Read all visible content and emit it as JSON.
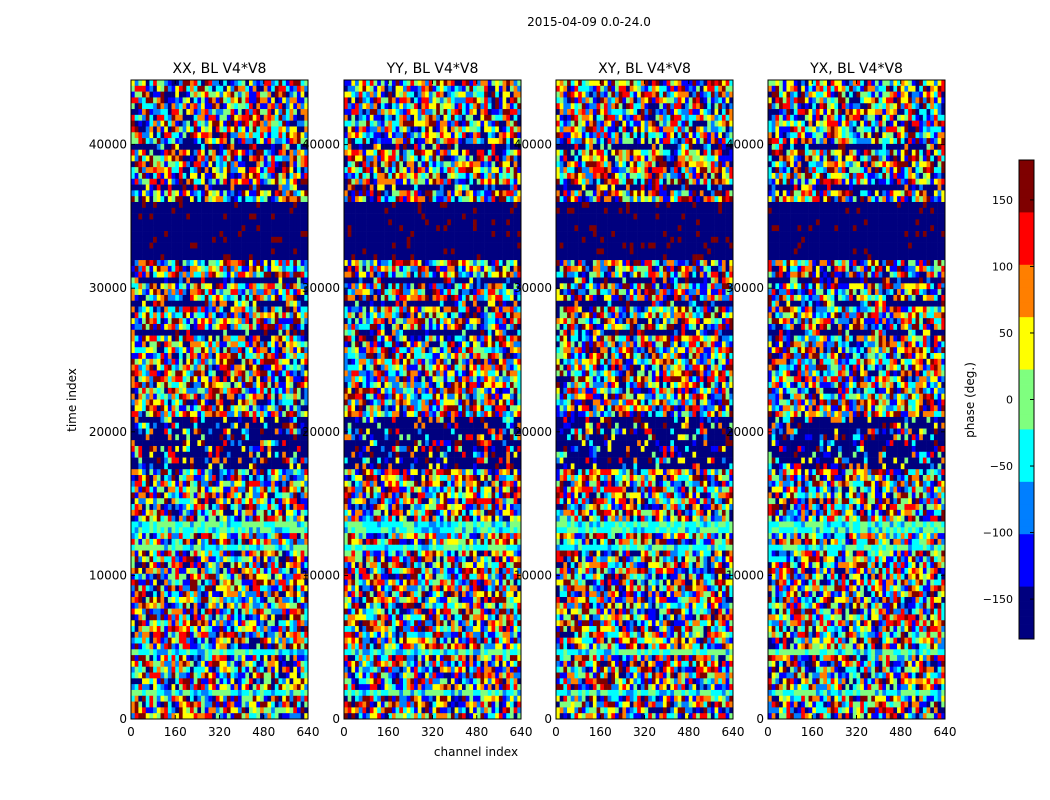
{
  "figure": {
    "suptitle": "2015-04-09 0.0-24.0",
    "xlabel": "channel index",
    "ylabel": "time index"
  },
  "chart_data": [
    {
      "type": "heatmap",
      "title": "XX, BL V4*V8",
      "xlim": [
        0,
        640
      ],
      "ylim": [
        0,
        44500
      ],
      "xticks": [
        0,
        160,
        320,
        480,
        640
      ],
      "yticks": [
        0,
        10000,
        20000,
        30000,
        40000
      ],
      "value_range": [
        -180,
        180
      ]
    },
    {
      "type": "heatmap",
      "title": "YY, BL V4*V8",
      "xlim": [
        0,
        640
      ],
      "ylim": [
        0,
        44500
      ],
      "xticks": [
        0,
        160,
        320,
        480,
        640
      ],
      "yticks": [
        0,
        10000,
        20000,
        30000,
        40000
      ],
      "value_range": [
        -180,
        180
      ]
    },
    {
      "type": "heatmap",
      "title": "XY, BL V4*V8",
      "xlim": [
        0,
        640
      ],
      "ylim": [
        0,
        44500
      ],
      "xticks": [
        0,
        160,
        320,
        480,
        640
      ],
      "yticks": [
        0,
        10000,
        20000,
        30000,
        40000
      ],
      "value_range": [
        -180,
        180
      ]
    },
    {
      "type": "heatmap",
      "title": "YX, BL V4*V8",
      "xlim": [
        0,
        640
      ],
      "ylim": [
        0,
        44500
      ],
      "xticks": [
        0,
        160,
        320,
        480,
        640
      ],
      "yticks": [
        0,
        10000,
        20000,
        30000,
        40000
      ],
      "value_range": [
        -180,
        180
      ]
    }
  ],
  "colorbar": {
    "label": "phase (deg.)",
    "range": [
      -180,
      180
    ],
    "ticks": [
      -150,
      -100,
      -50,
      0,
      50,
      100,
      150
    ],
    "tick_labels": [
      "−150",
      "−100",
      "−50",
      "0",
      "50",
      "100",
      "150"
    ],
    "colormap": [
      "#00007f",
      "#0000ff",
      "#007fff",
      "#00ffff",
      "#7fff7f",
      "#ffff00",
      "#ff7f00",
      "#ff0000",
      "#7f0000"
    ]
  },
  "regions": {
    "empty": [
      [
        32000,
        36000
      ]
    ],
    "dark": [
      [
        26800,
        27200
      ],
      [
        17400,
        21200
      ],
      [
        30300,
        30800
      ],
      [
        28800,
        29100
      ],
      [
        36800,
        37200
      ],
      [
        39800,
        40200
      ],
      [
        43500,
        43700
      ]
    ],
    "tealish": [
      [
        13000,
        13600
      ],
      [
        11700,
        12000
      ],
      [
        4300,
        4700
      ],
      [
        1700,
        2000
      ]
    ]
  }
}
